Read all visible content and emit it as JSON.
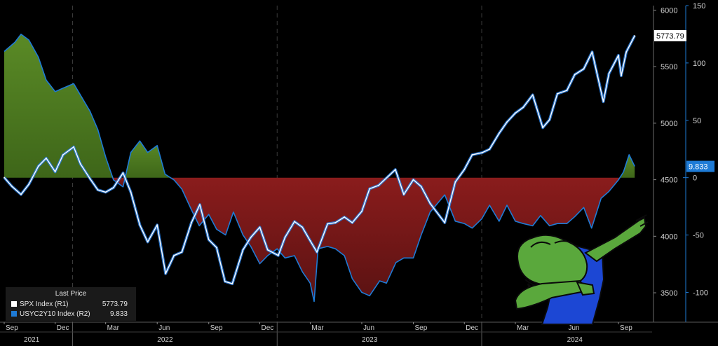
{
  "chart_data": {
    "type": "line",
    "title": "",
    "x_axis": {
      "range": [
        "2021-09-01",
        "2024-10-31"
      ],
      "month_ticks": [
        "Sep",
        "Dec",
        "Mar",
        "Jun",
        "Sep",
        "Dec",
        "Mar",
        "Jun",
        "Sep",
        "Dec",
        "Mar",
        "Jun",
        "Sep"
      ],
      "month_tick_dates": [
        "2021-09-01",
        "2021-12-01",
        "2022-03-01",
        "2022-06-01",
        "2022-09-01",
        "2022-12-01",
        "2023-03-01",
        "2023-06-01",
        "2023-09-01",
        "2023-12-01",
        "2024-03-01",
        "2024-06-01",
        "2024-09-01"
      ],
      "year_labels": [
        "2021",
        "2022",
        "2023",
        "2024"
      ],
      "year_label_dates": [
        "2021-10-20",
        "2022-06-15",
        "2023-06-15",
        "2024-06-15"
      ],
      "year_boundaries": [
        "2022-01-01",
        "2023-01-01",
        "2024-01-01"
      ]
    },
    "y_right_1": {
      "label": "SPX Index (R1)",
      "ticks": [
        3500,
        4000,
        4500,
        5000,
        5500,
        6000
      ],
      "range": [
        3240,
        6040
      ]
    },
    "y_right_2": {
      "label": "USYC2Y10 Index (R2)",
      "ticks": [
        -100,
        -50,
        0,
        50,
        100,
        150
      ],
      "range": [
        -126,
        150
      ]
    },
    "grid": "dashed vertical at year boundaries",
    "series": [
      {
        "name": "SPX Index (R1)",
        "axis": "R1",
        "color": "#ffffff",
        "style": "line",
        "x": [
          "2021-09-01",
          "2021-09-15",
          "2021-10-01",
          "2021-10-15",
          "2021-11-01",
          "2021-11-15",
          "2021-12-01",
          "2021-12-15",
          "2022-01-03",
          "2022-01-15",
          "2022-02-01",
          "2022-02-15",
          "2022-03-01",
          "2022-03-15",
          "2022-04-01",
          "2022-04-15",
          "2022-05-01",
          "2022-05-15",
          "2022-06-01",
          "2022-06-16",
          "2022-07-01",
          "2022-07-15",
          "2022-08-01",
          "2022-08-16",
          "2022-09-01",
          "2022-09-15",
          "2022-09-30",
          "2022-10-13",
          "2022-11-01",
          "2022-11-15",
          "2022-12-01",
          "2022-12-15",
          "2023-01-03",
          "2023-01-15",
          "2023-02-01",
          "2023-02-15",
          "2023-03-01",
          "2023-03-13",
          "2023-04-01",
          "2023-04-15",
          "2023-05-01",
          "2023-05-15",
          "2023-06-01",
          "2023-06-15",
          "2023-07-01",
          "2023-07-31",
          "2023-08-15",
          "2023-09-01",
          "2023-09-15",
          "2023-10-01",
          "2023-10-27",
          "2023-11-15",
          "2023-12-01",
          "2023-12-15",
          "2024-01-02",
          "2024-01-15",
          "2024-02-01",
          "2024-02-15",
          "2024-03-01",
          "2024-03-15",
          "2024-04-01",
          "2024-04-19",
          "2024-05-01",
          "2024-05-15",
          "2024-06-01",
          "2024-06-15",
          "2024-07-01",
          "2024-07-16",
          "2024-08-05",
          "2024-08-15",
          "2024-09-01",
          "2024-09-06",
          "2024-09-15",
          "2024-09-30"
        ],
        "values": [
          4520,
          4440,
          4370,
          4460,
          4620,
          4690,
          4570,
          4720,
          4790,
          4640,
          4510,
          4410,
          4390,
          4430,
          4560,
          4390,
          4100,
          3950,
          4100,
          3670,
          3830,
          3860,
          4120,
          4280,
          3970,
          3900,
          3600,
          3580,
          3880,
          3990,
          4080,
          3880,
          3830,
          3990,
          4130,
          4080,
          3960,
          3860,
          4110,
          4120,
          4170,
          4120,
          4220,
          4420,
          4450,
          4590,
          4370,
          4500,
          4440,
          4290,
          4120,
          4480,
          4590,
          4720,
          4740,
          4770,
          4910,
          5010,
          5090,
          5140,
          5250,
          4960,
          5030,
          5260,
          5290,
          5430,
          5480,
          5630,
          5190,
          5440,
          5600,
          5420,
          5630,
          5773.79
        ]
      },
      {
        "name": "USYC2Y10 Index (R2)",
        "axis": "R2",
        "color": "#1e7bd6",
        "style": "filled-area (green above 0, dark red below 0)",
        "x": [
          "2021-09-01",
          "2021-09-20",
          "2021-10-01",
          "2021-10-15",
          "2021-11-01",
          "2021-11-15",
          "2021-12-01",
          "2021-12-15",
          "2022-01-03",
          "2022-01-15",
          "2022-02-01",
          "2022-02-15",
          "2022-03-01",
          "2022-03-15",
          "2022-04-01",
          "2022-04-15",
          "2022-05-01",
          "2022-05-15",
          "2022-06-01",
          "2022-06-15",
          "2022-07-01",
          "2022-07-15",
          "2022-08-01",
          "2022-08-15",
          "2022-09-01",
          "2022-09-15",
          "2022-10-01",
          "2022-10-15",
          "2022-11-01",
          "2022-11-15",
          "2022-12-01",
          "2022-12-15",
          "2023-01-01",
          "2023-01-15",
          "2023-02-01",
          "2023-02-15",
          "2023-03-01",
          "2023-03-08",
          "2023-03-15",
          "2023-04-01",
          "2023-04-15",
          "2023-05-01",
          "2023-05-15",
          "2023-06-01",
          "2023-06-15",
          "2023-07-03",
          "2023-07-15",
          "2023-08-01",
          "2023-08-15",
          "2023-09-01",
          "2023-09-15",
          "2023-10-01",
          "2023-10-27",
          "2023-11-15",
          "2023-12-01",
          "2023-12-15",
          "2024-01-01",
          "2024-01-15",
          "2024-02-01",
          "2024-02-15",
          "2024-03-01",
          "2024-03-15",
          "2024-04-01",
          "2024-04-15",
          "2024-05-01",
          "2024-05-15",
          "2024-06-01",
          "2024-06-15",
          "2024-07-01",
          "2024-07-15",
          "2024-08-01",
          "2024-08-15",
          "2024-09-01",
          "2024-09-10",
          "2024-09-20",
          "2024-09-30"
        ],
        "values": [
          110,
          118,
          125,
          120,
          105,
          85,
          75,
          78,
          82,
          72,
          58,
          42,
          18,
          -2,
          -8,
          22,
          32,
          22,
          28,
          3,
          -2,
          -10,
          -28,
          -42,
          -32,
          -45,
          -50,
          -30,
          -50,
          -60,
          -75,
          -68,
          -62,
          -70,
          -68,
          -82,
          -92,
          -108,
          -62,
          -60,
          -62,
          -68,
          -88,
          -100,
          -103,
          -90,
          -92,
          -74,
          -70,
          -70,
          -50,
          -30,
          -15,
          -38,
          -40,
          -44,
          -36,
          -24,
          -38,
          -24,
          -38,
          -40,
          -42,
          -33,
          -42,
          -40,
          -40,
          -34,
          -26,
          -44,
          -18,
          -12,
          -2,
          5,
          20,
          9.833
        ]
      }
    ],
    "last_value_tags": {
      "R1": "5773.79",
      "R2": "9.833"
    },
    "legend": {
      "placement": "bottom-left",
      "title": "Last Price",
      "entries": [
        {
          "name": "SPX Index  (R1)",
          "value": "5773.79",
          "color": "#ffffff"
        },
        {
          "name": "USYC2Y10 Index  (R2)",
          "value": "9.833",
          "color": "#1e7bd6"
        }
      ]
    },
    "colors": {
      "positive_fill": "#4f7a22",
      "negative_fill": "#7a1818",
      "spx_line": "#ffffff",
      "curve_line": "#1e7bd6",
      "axis_text": "#d0d0d0",
      "background": "#000000"
    }
  },
  "overlay_image": "dabbing-frog"
}
